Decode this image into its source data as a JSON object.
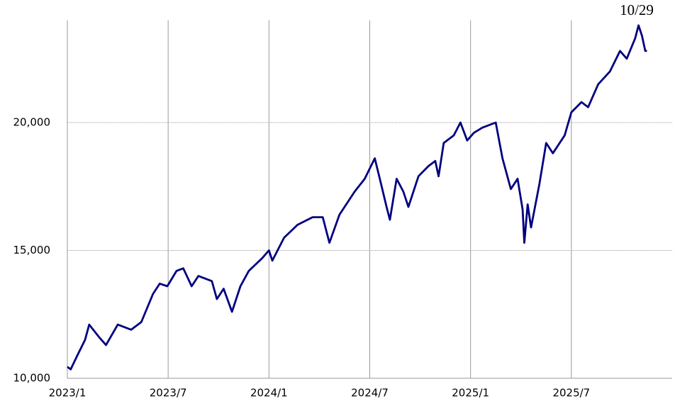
{
  "chart_data": {
    "type": "line",
    "annotation": "10/29",
    "x": [
      0,
      0.2,
      0.6,
      1.05,
      1.3,
      1.9,
      2.3,
      3.0,
      3.8,
      4.4,
      5.1,
      5.5,
      5.95,
      6.5,
      6.9,
      7.4,
      7.8,
      8.6,
      8.9,
      9.3,
      9.8,
      10.3,
      10.8,
      11.6,
      12.0,
      12.2,
      12.9,
      13.7,
      14.6,
      15.2,
      15.6,
      16.2,
      17.1,
      17.7,
      18.3,
      18.6,
      19.0,
      19.2,
      19.6,
      20.0,
      20.3,
      20.9,
      21.5,
      21.9,
      22.1,
      22.4,
      23.0,
      23.4,
      23.8,
      24.2,
      24.7,
      25.5,
      25.9,
      26.4,
      26.8,
      27.1,
      27.2,
      27.4,
      27.6,
      28.1,
      28.5,
      28.9,
      29.6,
      30.0,
      30.6,
      31.0,
      31.6,
      32.3,
      32.9,
      33.3,
      33.8,
      34.0,
      34.2,
      34.4,
      34.5
    ],
    "series": [
      {
        "color": "#000080",
        "values": [
          10450,
          10350,
          10900,
          11500,
          12100,
          11600,
          11300,
          12100,
          11900,
          12200,
          13300,
          13700,
          13600,
          14200,
          14300,
          13600,
          14000,
          13800,
          13100,
          13500,
          12600,
          13600,
          14200,
          14700,
          15000,
          14600,
          15500,
          16000,
          16300,
          16300,
          15300,
          16400,
          17300,
          17800,
          18600,
          17800,
          16700,
          16200,
          17800,
          17300,
          16700,
          17900,
          18300,
          18500,
          17900,
          19200,
          19500,
          20000,
          19300,
          19600,
          19800,
          20000,
          18600,
          17400,
          17800,
          16600,
          15300,
          16800,
          15900,
          17600,
          19200,
          18800,
          19500,
          20400,
          20800,
          20600,
          21500,
          22000,
          22800,
          22500,
          23300,
          23800,
          23400,
          22800,
          22800
        ]
      }
    ],
    "xlim": [
      0,
      36
    ],
    "xticks": [
      {
        "value": 0,
        "label": "2023/1"
      },
      {
        "value": 6,
        "label": "2023/7"
      },
      {
        "value": 12,
        "label": "2024/1"
      },
      {
        "value": 18,
        "label": "2024/7"
      },
      {
        "value": 24,
        "label": "2025/1"
      },
      {
        "value": 30,
        "label": "2025/7"
      }
    ],
    "ylim": [
      10000,
      24000
    ],
    "yticks": [
      {
        "value": 10000,
        "label": "10,000"
      },
      {
        "value": 15000,
        "label": "15,000"
      },
      {
        "value": 20000,
        "label": "20,000"
      }
    ],
    "grid": true
  }
}
